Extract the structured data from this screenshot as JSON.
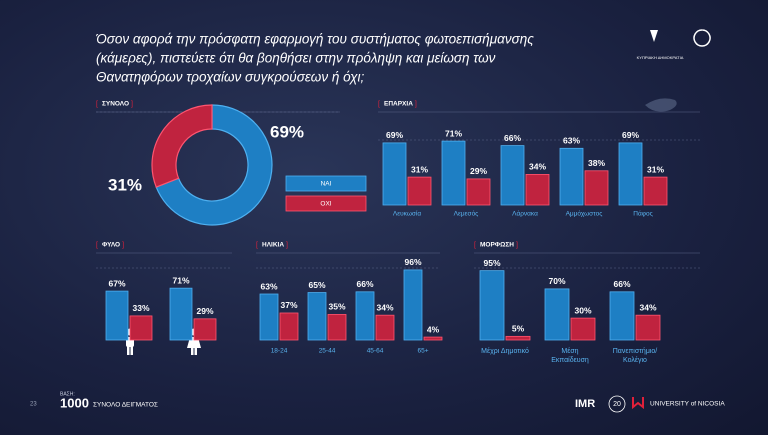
{
  "slide": {
    "title": [
      "Όσον αφορά την πρόσφατη εφαρμογή του συστήματος φωτοεπισήμανσης",
      "(κάμερες), πιστεύετε ότι θα βοηθήσει στην πρόληψη και μείωση των",
      "Θανατηφόρων τροχαίων  συγκρούσεων ή όχι;"
    ],
    "logo_text": "ΚΥΠΡΙΑΚΗ ΔΗΜΟΚΡΑΤΙΑ",
    "page": "23",
    "base_label": "ΒΑΣΗ:",
    "base_value": 1000,
    "base_note": "ΣΥΝΟΛΟ ΔΕΙΓΜΑΤΟΣ",
    "partner_1": "IMR",
    "anniversary": "20",
    "partner_2": "UNIVERSITY of NICOSIA"
  },
  "chart_data": [
    {
      "type": "donut",
      "title": "ΣΥΝΟΛΟ",
      "categories": [
        "ΝΑΙ",
        "ΟΧΙ"
      ],
      "values": [
        69,
        31
      ],
      "value_labels": [
        "69%",
        "31%"
      ],
      "colors": [
        "#1e7fc4",
        "#c0233f"
      ]
    },
    {
      "type": "bar",
      "title": "ΕΠΑΡΧΙΑ",
      "categories": [
        "Λευκωσία",
        "Λεμεσός",
        "Λάρνακα",
        "Αμμόχωστος",
        "Πάφος"
      ],
      "series": [
        {
          "color": "#1e7fc4",
          "values": [
            69,
            71,
            66,
            63,
            69
          ],
          "value_labels": [
            "69%",
            "71%",
            "66%",
            "63%",
            "69%"
          ]
        },
        {
          "color": "#c0233f",
          "values": [
            31,
            29,
            34,
            38,
            31
          ],
          "value_labels": [
            "31%",
            "29%",
            "34%",
            "38%",
            "31%"
          ]
        }
      ]
    },
    {
      "type": "bar",
      "title": "ΦΥΛΟ",
      "series": [
        {
          "color": "#1e7fc4",
          "values": [
            67,
            71
          ],
          "value_labels": [
            "67%",
            "71%"
          ]
        },
        {
          "color": "#c0233f",
          "values": [
            33,
            29
          ],
          "value_labels": [
            "33%",
            "29%"
          ]
        }
      ]
    },
    {
      "type": "bar",
      "title": "ΗΛΙΚΙΑ",
      "categories": [
        "18-24",
        "25-44",
        "45-64",
        "65+"
      ],
      "series": [
        {
          "color": "#1e7fc4",
          "values": [
            63,
            65,
            66,
            96
          ],
          "value_labels": [
            "63%",
            "65%",
            "66%",
            "96%"
          ]
        },
        {
          "color": "#c0233f",
          "values": [
            37,
            35,
            34,
            4
          ],
          "value_labels": [
            "37%",
            "35%",
            "34%",
            "4%"
          ]
        }
      ]
    },
    {
      "type": "bar",
      "title": "ΜΟΡΦΩΣΗ",
      "categories": [
        "Μέχρι Δημοτικό",
        "Μέση Εκπαίδευση",
        "Πανεπιστήμιο/ Κολέγιο"
      ],
      "series": [
        {
          "color": "#1e7fc4",
          "values": [
            95,
            70,
            66
          ],
          "value_labels": [
            "95%",
            "70%",
            "66%"
          ]
        },
        {
          "color": "#c0233f",
          "values": [
            5,
            30,
            34
          ],
          "value_labels": [
            "5%",
            "30%",
            "34%"
          ]
        }
      ]
    }
  ]
}
